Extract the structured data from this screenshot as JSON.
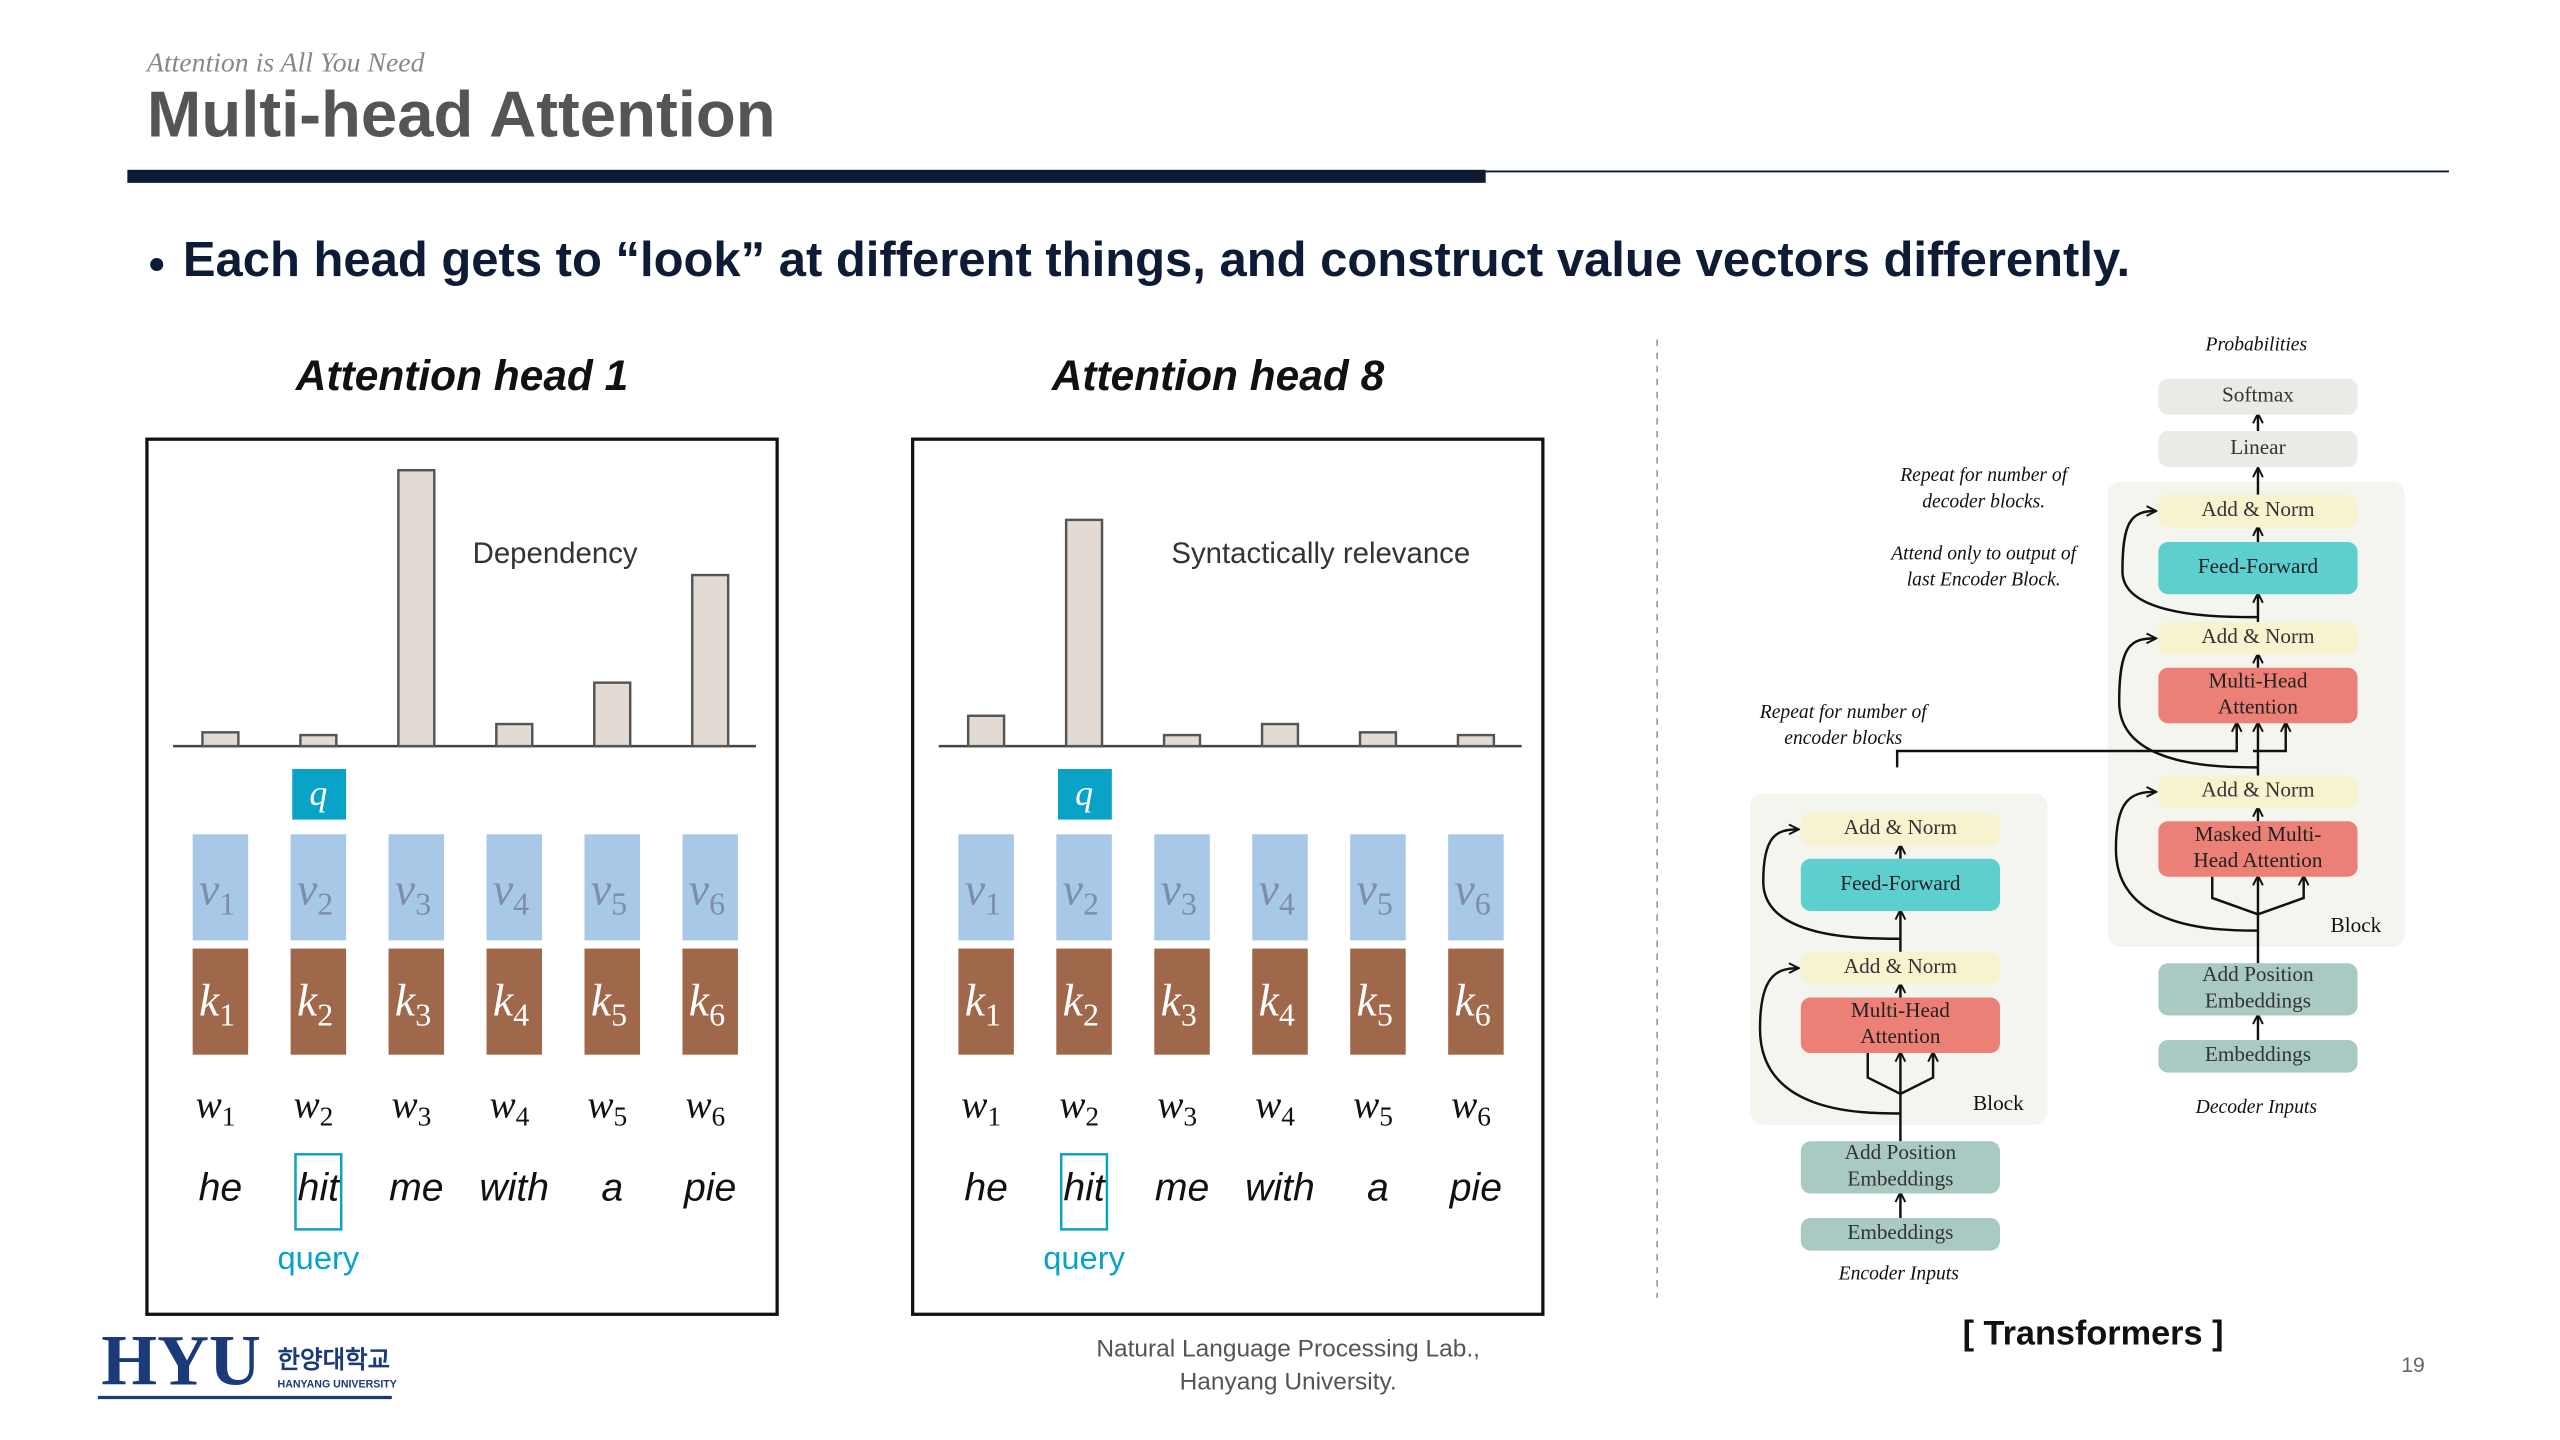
{
  "header": {
    "subtitle": "Attention is All You Need",
    "title": "Multi-head Attention"
  },
  "bullet": "Each head gets to “look” at different things, and construct value vectors differently.",
  "panels": [
    {
      "title": "Attention head 1",
      "annotation": "Dependency",
      "query_symbol": "q",
      "query_label": "query",
      "query_index": 1,
      "weights": [
        5,
        4,
        100,
        8,
        23,
        62
      ]
    },
    {
      "title": "Attention head 8",
      "annotation": "Syntactically relevance",
      "query_symbol": "q",
      "query_label": "query",
      "query_index": 1,
      "weights": [
        11,
        82,
        4,
        8,
        5,
        4
      ]
    }
  ],
  "symbols": {
    "value": "v",
    "key": "k",
    "word": "w",
    "indices": [
      "1",
      "2",
      "3",
      "4",
      "5",
      "6"
    ]
  },
  "words": [
    "he",
    "hit",
    "me",
    "with",
    "a",
    "pie"
  ],
  "diagram": {
    "caption": "[ Transformers ]",
    "decoder_nodes": [
      {
        "label": [
          "Softmax"
        ]
      },
      {
        "label": [
          "Linear"
        ]
      },
      {
        "label": [
          "Add & Norm"
        ]
      },
      {
        "label": [
          "Feed-Forward"
        ]
      },
      {
        "label": [
          "Add & Norm"
        ]
      },
      {
        "label": [
          "Multi-Head",
          "Attention"
        ]
      },
      {
        "label": [
          "Add & Norm"
        ]
      },
      {
        "label": [
          "Masked Multi-",
          "Head Attention"
        ]
      },
      {
        "label": [
          "Add Position",
          "Embeddings"
        ]
      },
      {
        "label": [
          "Embeddings"
        ]
      }
    ],
    "encoder_nodes": [
      {
        "label": [
          "Add & Norm"
        ]
      },
      {
        "label": [
          "Feed-Forward"
        ]
      },
      {
        "label": [
          "Add & Norm"
        ]
      },
      {
        "label": [
          "Multi-Head",
          "Attention"
        ]
      },
      {
        "label": [
          "Add Position",
          "Embeddings"
        ]
      },
      {
        "label": [
          "Embeddings"
        ]
      }
    ],
    "notes": [
      [
        "Probabilities"
      ],
      [
        "Repeat  for number of",
        "decoder blocks."
      ],
      [
        "Attend only to output of",
        "last Encoder Block."
      ],
      [
        "Repeat  for number of",
        "encoder blocks"
      ],
      [
        "Decoder Inputs"
      ],
      [
        "Encoder Inputs"
      ]
    ],
    "block_labels": [
      "Block",
      "Block"
    ]
  },
  "footer": {
    "logo": "HYU",
    "university_korean": "한양대학교",
    "university_english": "HANYANG UNIVERSITY",
    "lab": [
      "Natural Language Processing Lab.,",
      "Hanyang University."
    ],
    "page_number": "19"
  }
}
